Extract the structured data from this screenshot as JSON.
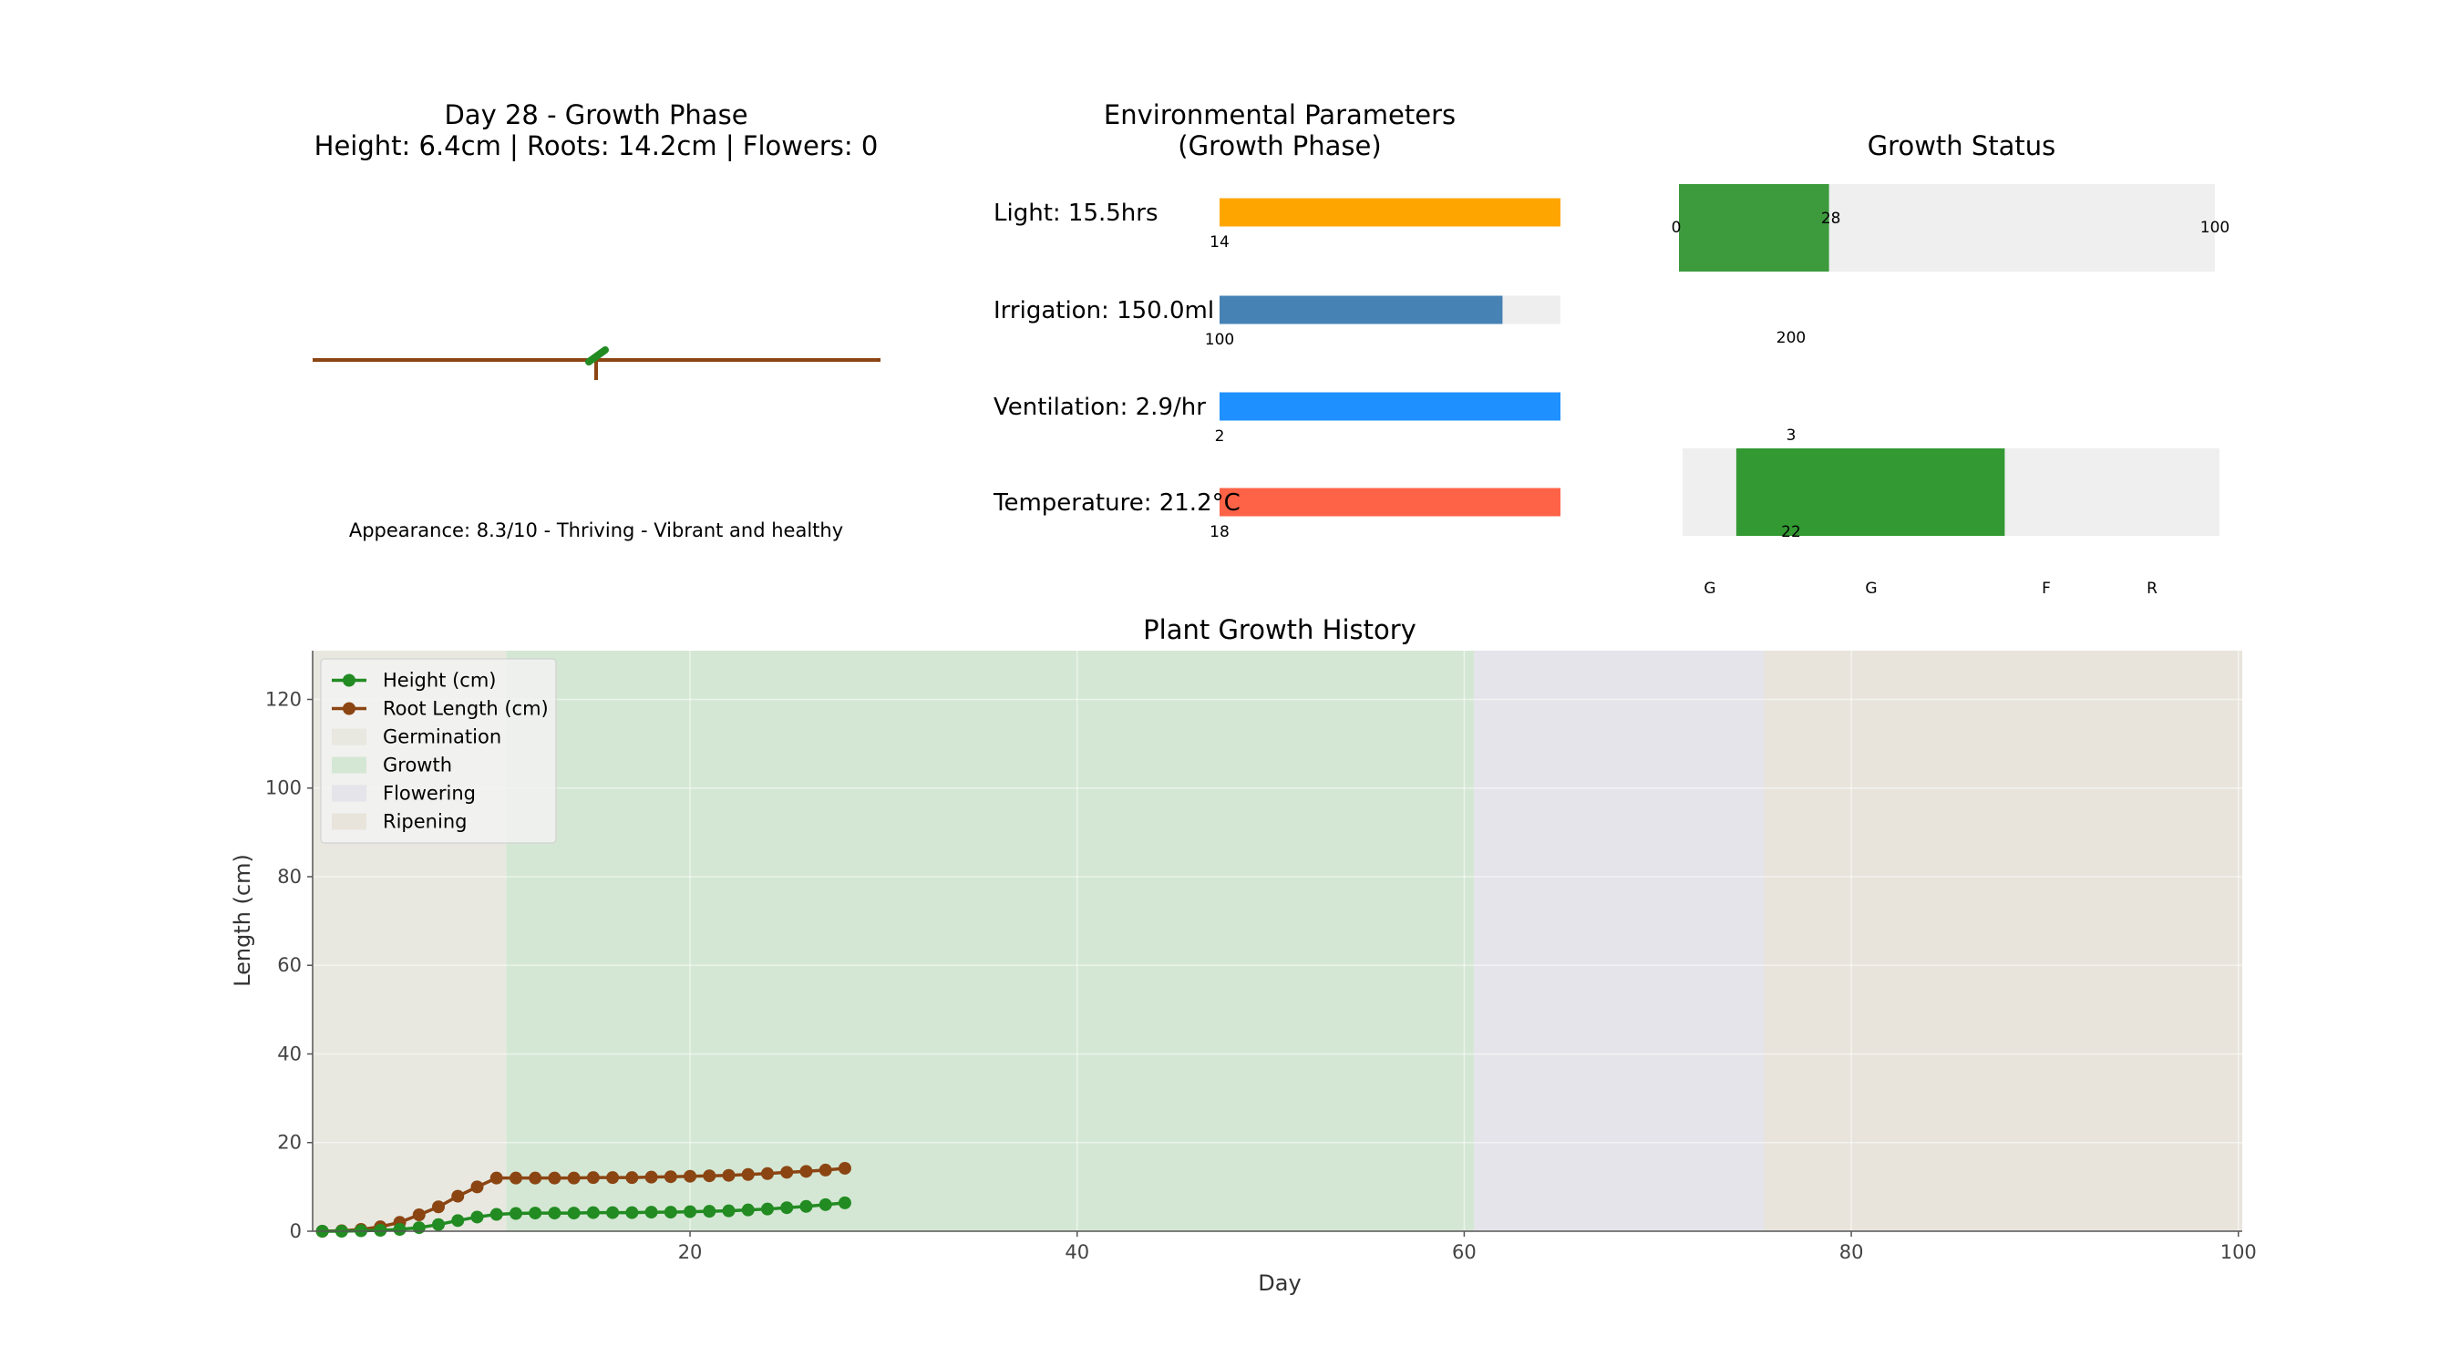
{
  "plant_panel": {
    "title_line1": "Day 28 - Growth Phase",
    "title_line2": "Height: 6.4cm | Roots: 14.2cm | Flowers: 0",
    "appearance": "Appearance: 8.3/10 - Thriving - Vibrant and healthy",
    "colors": {
      "soil": "#8B4513",
      "leaf": "#228B22",
      "stem": "#8B4513"
    }
  },
  "env_panel": {
    "title_line1": "Environmental Parameters",
    "title_line2": "(Growth Phase)",
    "params": [
      {
        "label": "Light: 15.5hrs",
        "min_label": "14",
        "fill_fraction": 1.0,
        "color": "#FFA500"
      },
      {
        "label": "Irrigation: 150.0ml",
        "min_label": "100",
        "fill_fraction": 0.83,
        "color": "#4682B4"
      },
      {
        "label": "Ventilation: 2.9/hr",
        "min_label": "2",
        "fill_fraction": 1.0,
        "color": "#1E90FF"
      },
      {
        "label": "Temperature: 21.2°C",
        "min_label": "18",
        "fill_fraction": 1.0,
        "color": "#FF6347"
      }
    ],
    "track_color": "#EEEEEE"
  },
  "status_panel": {
    "title": "Growth Status",
    "progress": {
      "value": 28,
      "max": 100,
      "min_label": "0",
      "value_label": "28",
      "max_label": "100",
      "color": "#3D9A3D"
    },
    "range_labels": [
      "200",
      "3",
      "22"
    ],
    "phase_bar": {
      "start_fraction": 0.1,
      "end_fraction": 0.6,
      "color": "#339933"
    },
    "phase_letters": [
      "G",
      "G",
      "F",
      "R"
    ]
  },
  "chart_data": {
    "type": "line",
    "title": "Plant Growth History",
    "xlabel": "Day",
    "ylabel": "Length (cm)",
    "xlim": [
      0.5,
      100.2
    ],
    "ylim": [
      0,
      131
    ],
    "x_ticks": [
      20,
      40,
      60,
      80,
      100
    ],
    "y_ticks": [
      0,
      20,
      40,
      60,
      80,
      100,
      120
    ],
    "grid": true,
    "legend_position": "top-left",
    "x": [
      1,
      2,
      3,
      4,
      5,
      6,
      7,
      8,
      9,
      10,
      11,
      12,
      13,
      14,
      15,
      16,
      17,
      18,
      19,
      20,
      21,
      22,
      23,
      24,
      25,
      26,
      27,
      28
    ],
    "series": [
      {
        "name": "Height (cm)",
        "color": "#228B22",
        "values": [
          0,
          0,
          0.1,
          0.2,
          0.4,
          0.8,
          1.5,
          2.4,
          3.2,
          3.8,
          4.0,
          4.1,
          4.1,
          4.1,
          4.2,
          4.2,
          4.2,
          4.3,
          4.3,
          4.4,
          4.5,
          4.6,
          4.8,
          5.0,
          5.3,
          5.6,
          6.0,
          6.4
        ]
      },
      {
        "name": "Root Length (cm)",
        "color": "#8B4513",
        "values": [
          0,
          0.1,
          0.4,
          1.0,
          2.0,
          3.7,
          5.5,
          7.9,
          10.0,
          12.0,
          12.0,
          12.0,
          12.0,
          12.0,
          12.1,
          12.1,
          12.1,
          12.2,
          12.3,
          12.4,
          12.5,
          12.6,
          12.8,
          13.0,
          13.3,
          13.5,
          13.8,
          14.2
        ]
      }
    ],
    "phases": [
      {
        "name": "Germination",
        "start": 0.5,
        "end": 10.5,
        "color": "#E8E8E0"
      },
      {
        "name": "Growth",
        "start": 10.5,
        "end": 60.5,
        "color": "#D4E7D4"
      },
      {
        "name": "Flowering",
        "start": 60.5,
        "end": 75.5,
        "color": "#E4E4EA"
      },
      {
        "name": "Ripening",
        "start": 75.5,
        "end": 100.2,
        "color": "#E8E4DC"
      }
    ]
  }
}
